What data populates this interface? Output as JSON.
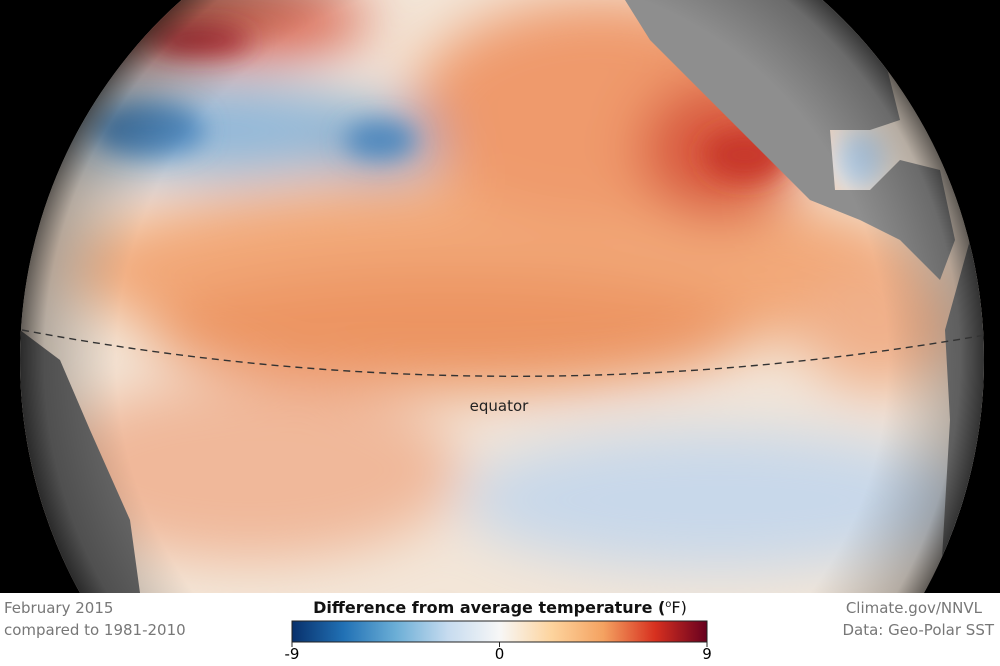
{
  "map": {
    "label": "equator",
    "date": "February 2015",
    "baseline": "compared to 1981-2010",
    "credit": "Climate.gov/NNVL",
    "source": "Data: Geo-Polar SST"
  },
  "legend": {
    "title": "Difference from average temperature (",
    "unit_degree": "o",
    "unit_rest": "F)",
    "range": [
      -9,
      9
    ],
    "ticks": [
      -9,
      0,
      9
    ],
    "colors": [
      "#08306b",
      "#2171b5",
      "#6baed6",
      "#c6dbef",
      "#f7f7f7",
      "#fdd49e",
      "#f4a261",
      "#d7301f",
      "#67001f"
    ]
  }
}
